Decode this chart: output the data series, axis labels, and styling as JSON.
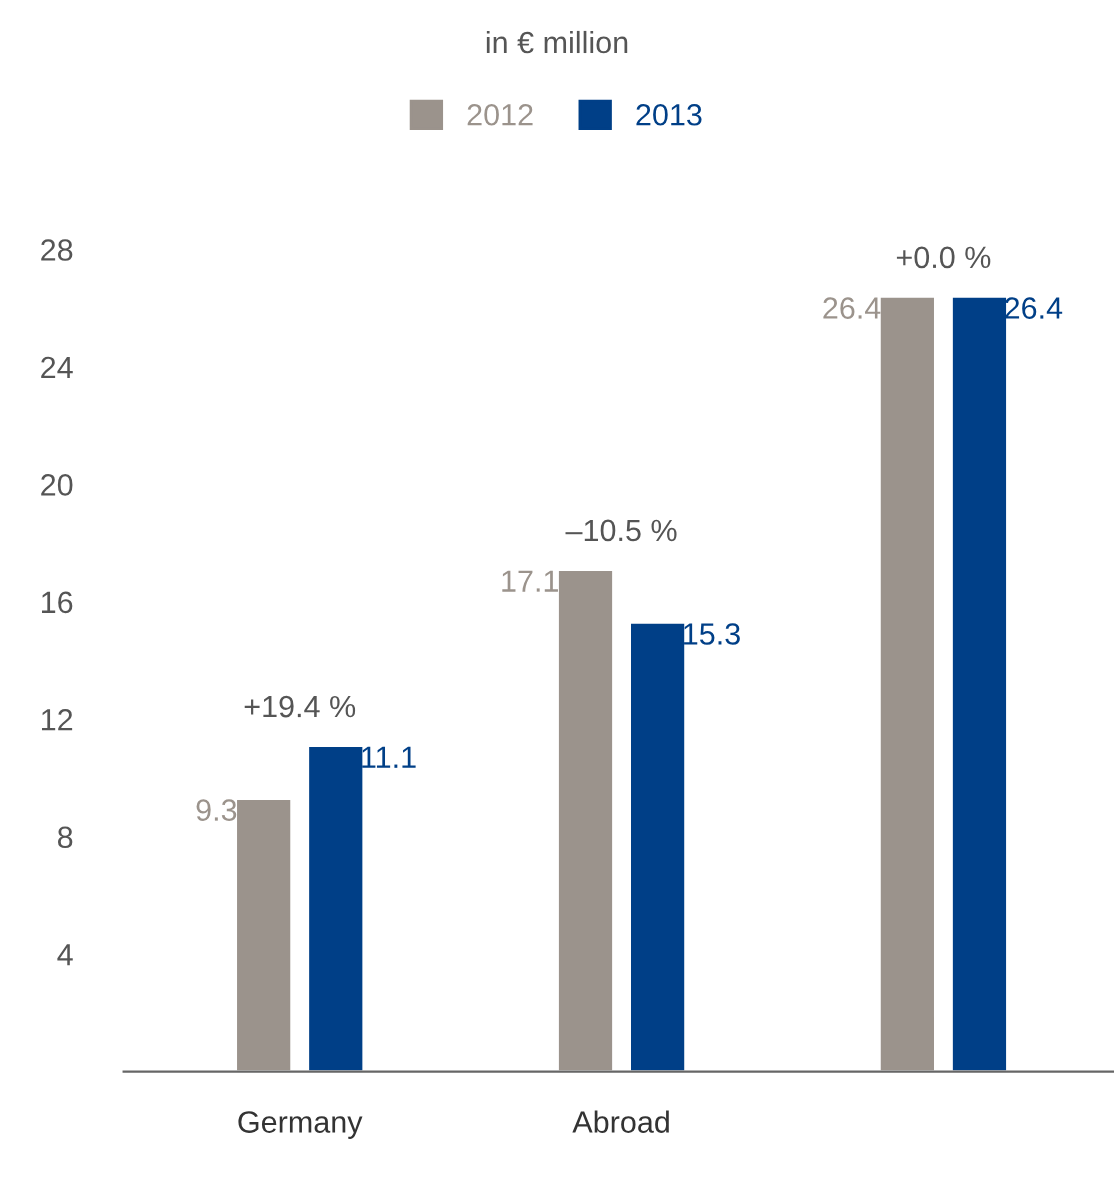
{
  "chart_data": {
    "type": "bar",
    "title": "in € million",
    "categories": [
      "Germany",
      "Abroad",
      null
    ],
    "series": [
      {
        "name": "2012",
        "color": "#9b938c",
        "values": [
          9.3,
          17.1,
          26.4
        ]
      },
      {
        "name": "2013",
        "color": "#003f87",
        "values": [
          11.1,
          15.3,
          26.4
        ]
      }
    ],
    "ylim": [
      0,
      28
    ],
    "yticks": [
      4,
      8,
      12,
      16,
      20,
      24,
      28
    ],
    "data_labels": true,
    "legend": "top",
    "grid": false,
    "annotations": [
      "+19.4 %",
      "–10.5 %",
      "+0.0 %"
    ]
  }
}
